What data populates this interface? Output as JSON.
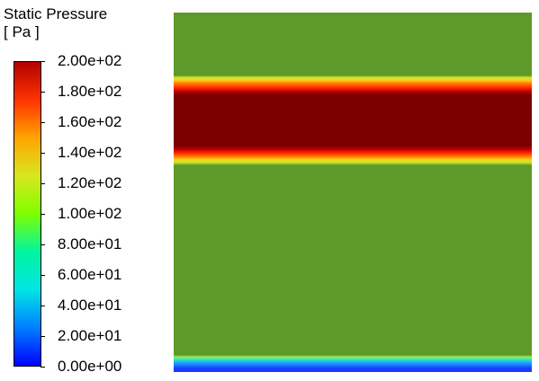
{
  "legend": {
    "title_line1": "Static Pressure",
    "title_line2": "[ Pa ]",
    "ticks": [
      "2.00e+02",
      "1.80e+02",
      "1.60e+02",
      "1.40e+02",
      "1.20e+02",
      "1.00e+02",
      "8.00e+01",
      "6.00e+01",
      "4.00e+01",
      "2.00e+01",
      "0.00e+00"
    ],
    "min": 0,
    "max": 200,
    "colormap": [
      "#0000ff",
      "#007fff",
      "#00e5e5",
      "#00f5a0",
      "#7fff00",
      "#d8e61e",
      "#ffa500",
      "#ff3300",
      "#b30000"
    ]
  },
  "contour": {
    "background_color": "#5e9a2a",
    "high_band_color": "#7a0000",
    "low_band_color": "#1a3cff"
  }
}
